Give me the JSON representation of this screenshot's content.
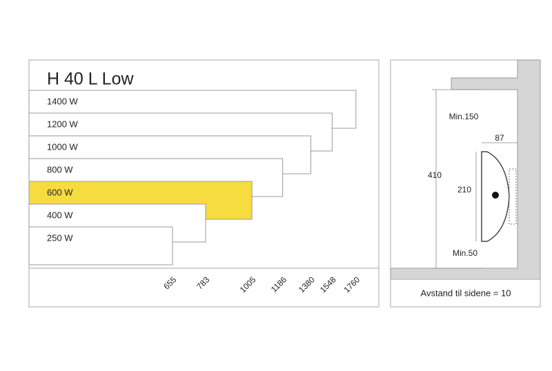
{
  "title": "H 40 L Low",
  "models": [
    {
      "label": "1400 W",
      "length": 1760
    },
    {
      "label": "1200 W",
      "length": 1548
    },
    {
      "label": "1000 W",
      "length": 1380
    },
    {
      "label": "800 W",
      "length": 1186
    },
    {
      "label": "600 W",
      "length": 1005,
      "color": "#f6dc3e"
    },
    {
      "label": "400 W",
      "length": 783
    },
    {
      "label": "250 W",
      "length": 655
    }
  ],
  "mounting": {
    "top_clearance": "Min.150",
    "depth": "87",
    "height": "410",
    "bracket_height": "210",
    "bottom_clearance": "Min.50",
    "note": "Avstand til sidene = 10"
  }
}
